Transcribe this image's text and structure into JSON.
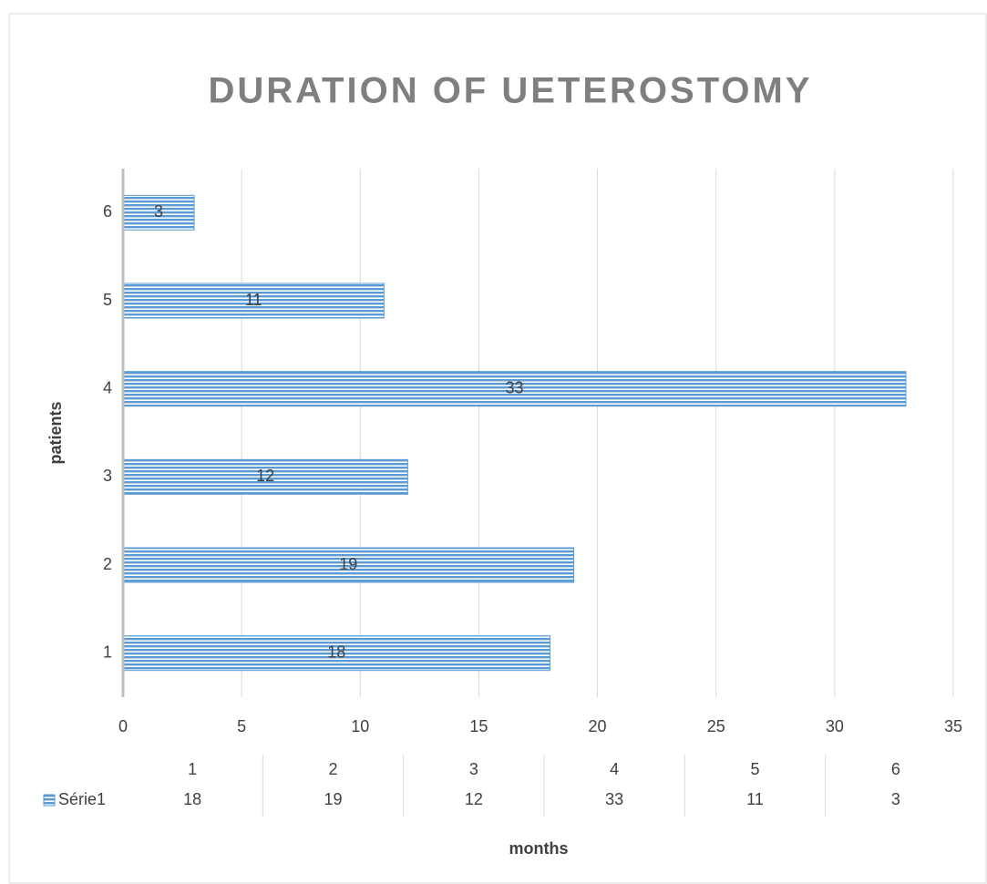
{
  "chart_data": {
    "type": "bar",
    "orientation": "horizontal",
    "title": "DURATION OF UETEROSTOMY",
    "x_label": "months",
    "y_label": "patients",
    "categories": [
      "1",
      "2",
      "3",
      "4",
      "5",
      "6"
    ],
    "series": [
      {
        "name": "Série1",
        "color": "#5b9bd5",
        "values": [
          18,
          19,
          12,
          33,
          11,
          3
        ]
      }
    ],
    "xlim": [
      0,
      35
    ],
    "xticks": [
      0,
      5,
      10,
      15,
      20,
      25,
      30,
      35
    ],
    "grid": true,
    "data_table": true
  }
}
